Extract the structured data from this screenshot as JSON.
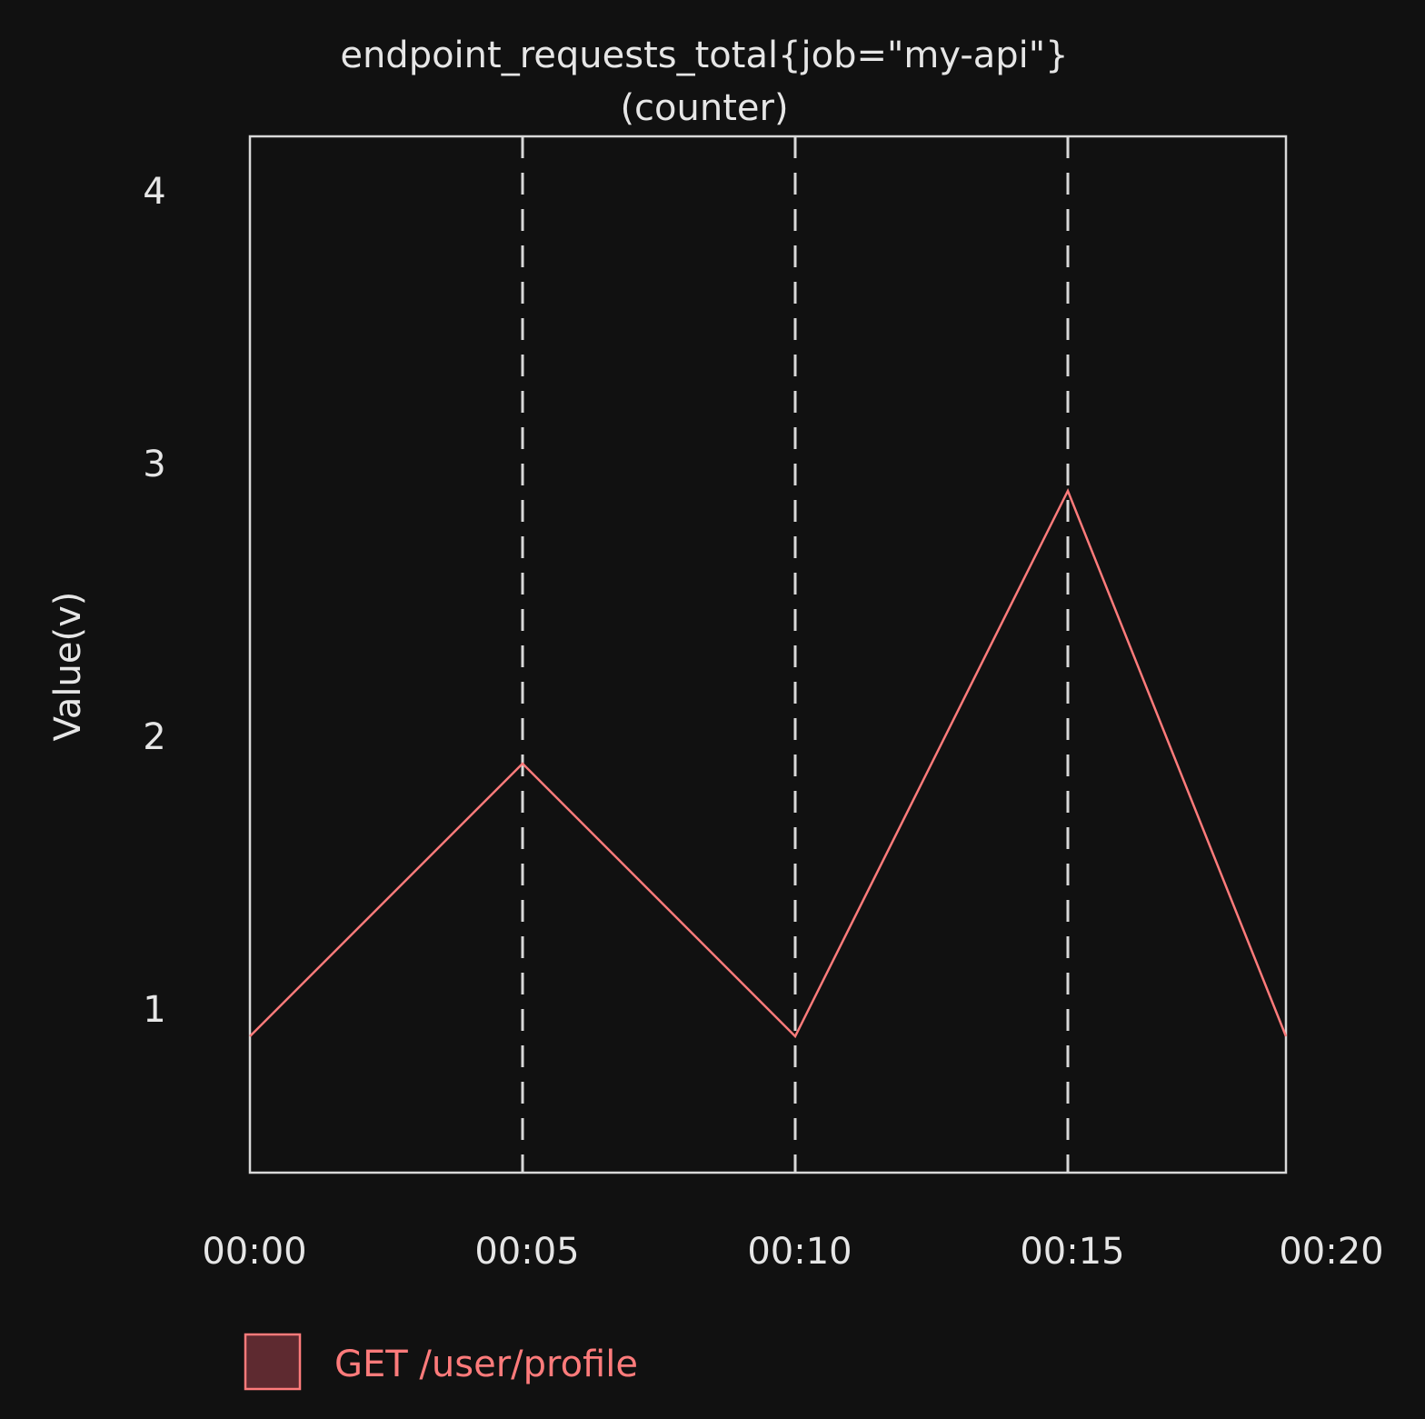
{
  "chart_data": {
    "type": "line",
    "title": "endpoint_requests_total{job=\"my-api\"}",
    "subtitle": "(counter)",
    "ylabel": "Value(v)",
    "xlabel": "",
    "x_ticks": [
      "00:00",
      "00:05",
      "00:10",
      "00:15",
      "00:20"
    ],
    "y_ticks": [
      1,
      2,
      3,
      4
    ],
    "ylim": [
      0.4,
      4.2
    ],
    "x_minutes_range": [
      0,
      19
    ],
    "grid": "vertical dashed lines at 00:05, 00:10, 00:15",
    "legend_position": "bottom-left",
    "series": [
      {
        "name": "GET /user/profile",
        "color": "#ff7b7b",
        "legend_fill": "#5e2a30",
        "x": [
          "00:00",
          "00:05",
          "00:10",
          "00:15",
          "00:19"
        ],
        "x_minutes": [
          0,
          5,
          10,
          15,
          19
        ],
        "values": [
          0.9,
          1.9,
          0.9,
          2.9,
          0.9
        ]
      }
    ],
    "background": "#111111",
    "foreground": "#e6e6e6"
  }
}
